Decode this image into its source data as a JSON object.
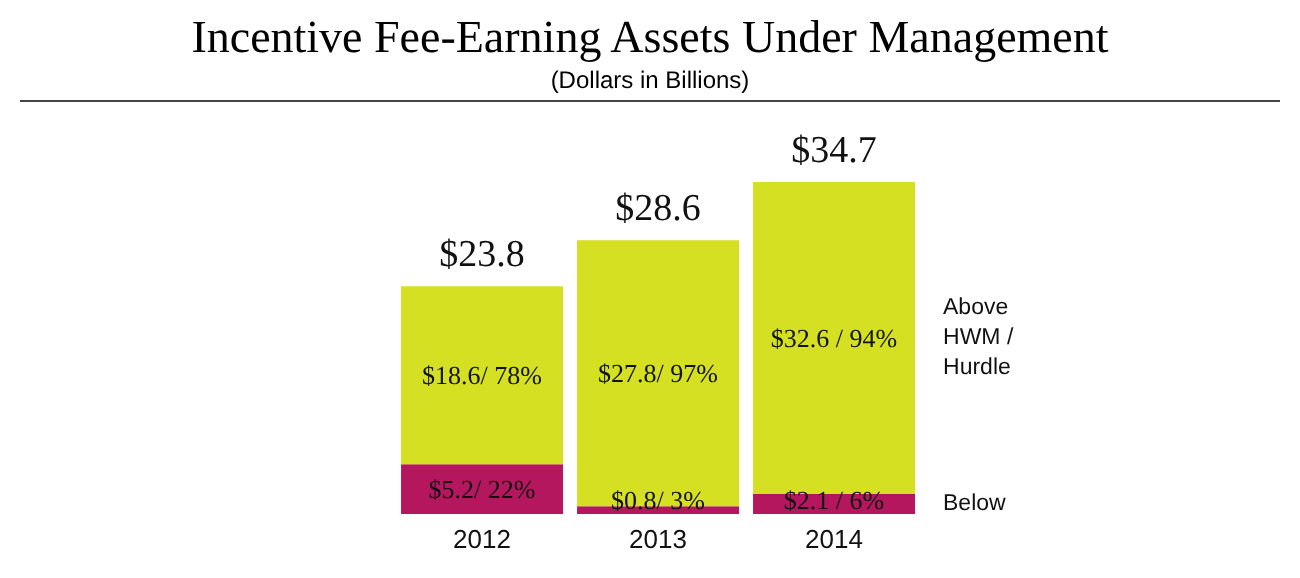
{
  "chart_data": {
    "type": "bar",
    "title": "Incentive Fee-Earning Assets Under Management",
    "subtitle": "(Dollars in Billions)",
    "categories": [
      "2012",
      "2013",
      "2014"
    ],
    "stacked": true,
    "series": [
      {
        "name": "Below",
        "color": "#b5175e",
        "values": [
          5.2,
          0.8,
          2.1
        ],
        "value_labels": [
          "$5.2/ 22%",
          "$0.8/ 3%",
          "$2.1 / 6%"
        ]
      },
      {
        "name": "Above HWM / Hurdle",
        "color": "#d4e021",
        "values": [
          18.6,
          27.8,
          32.6
        ],
        "value_labels": [
          "$18.6/ 78%",
          "$27.8/ 97%",
          "$32.6 / 94%"
        ]
      }
    ],
    "totals": [
      "$23.8",
      "$28.6",
      "$34.7"
    ]
  }
}
